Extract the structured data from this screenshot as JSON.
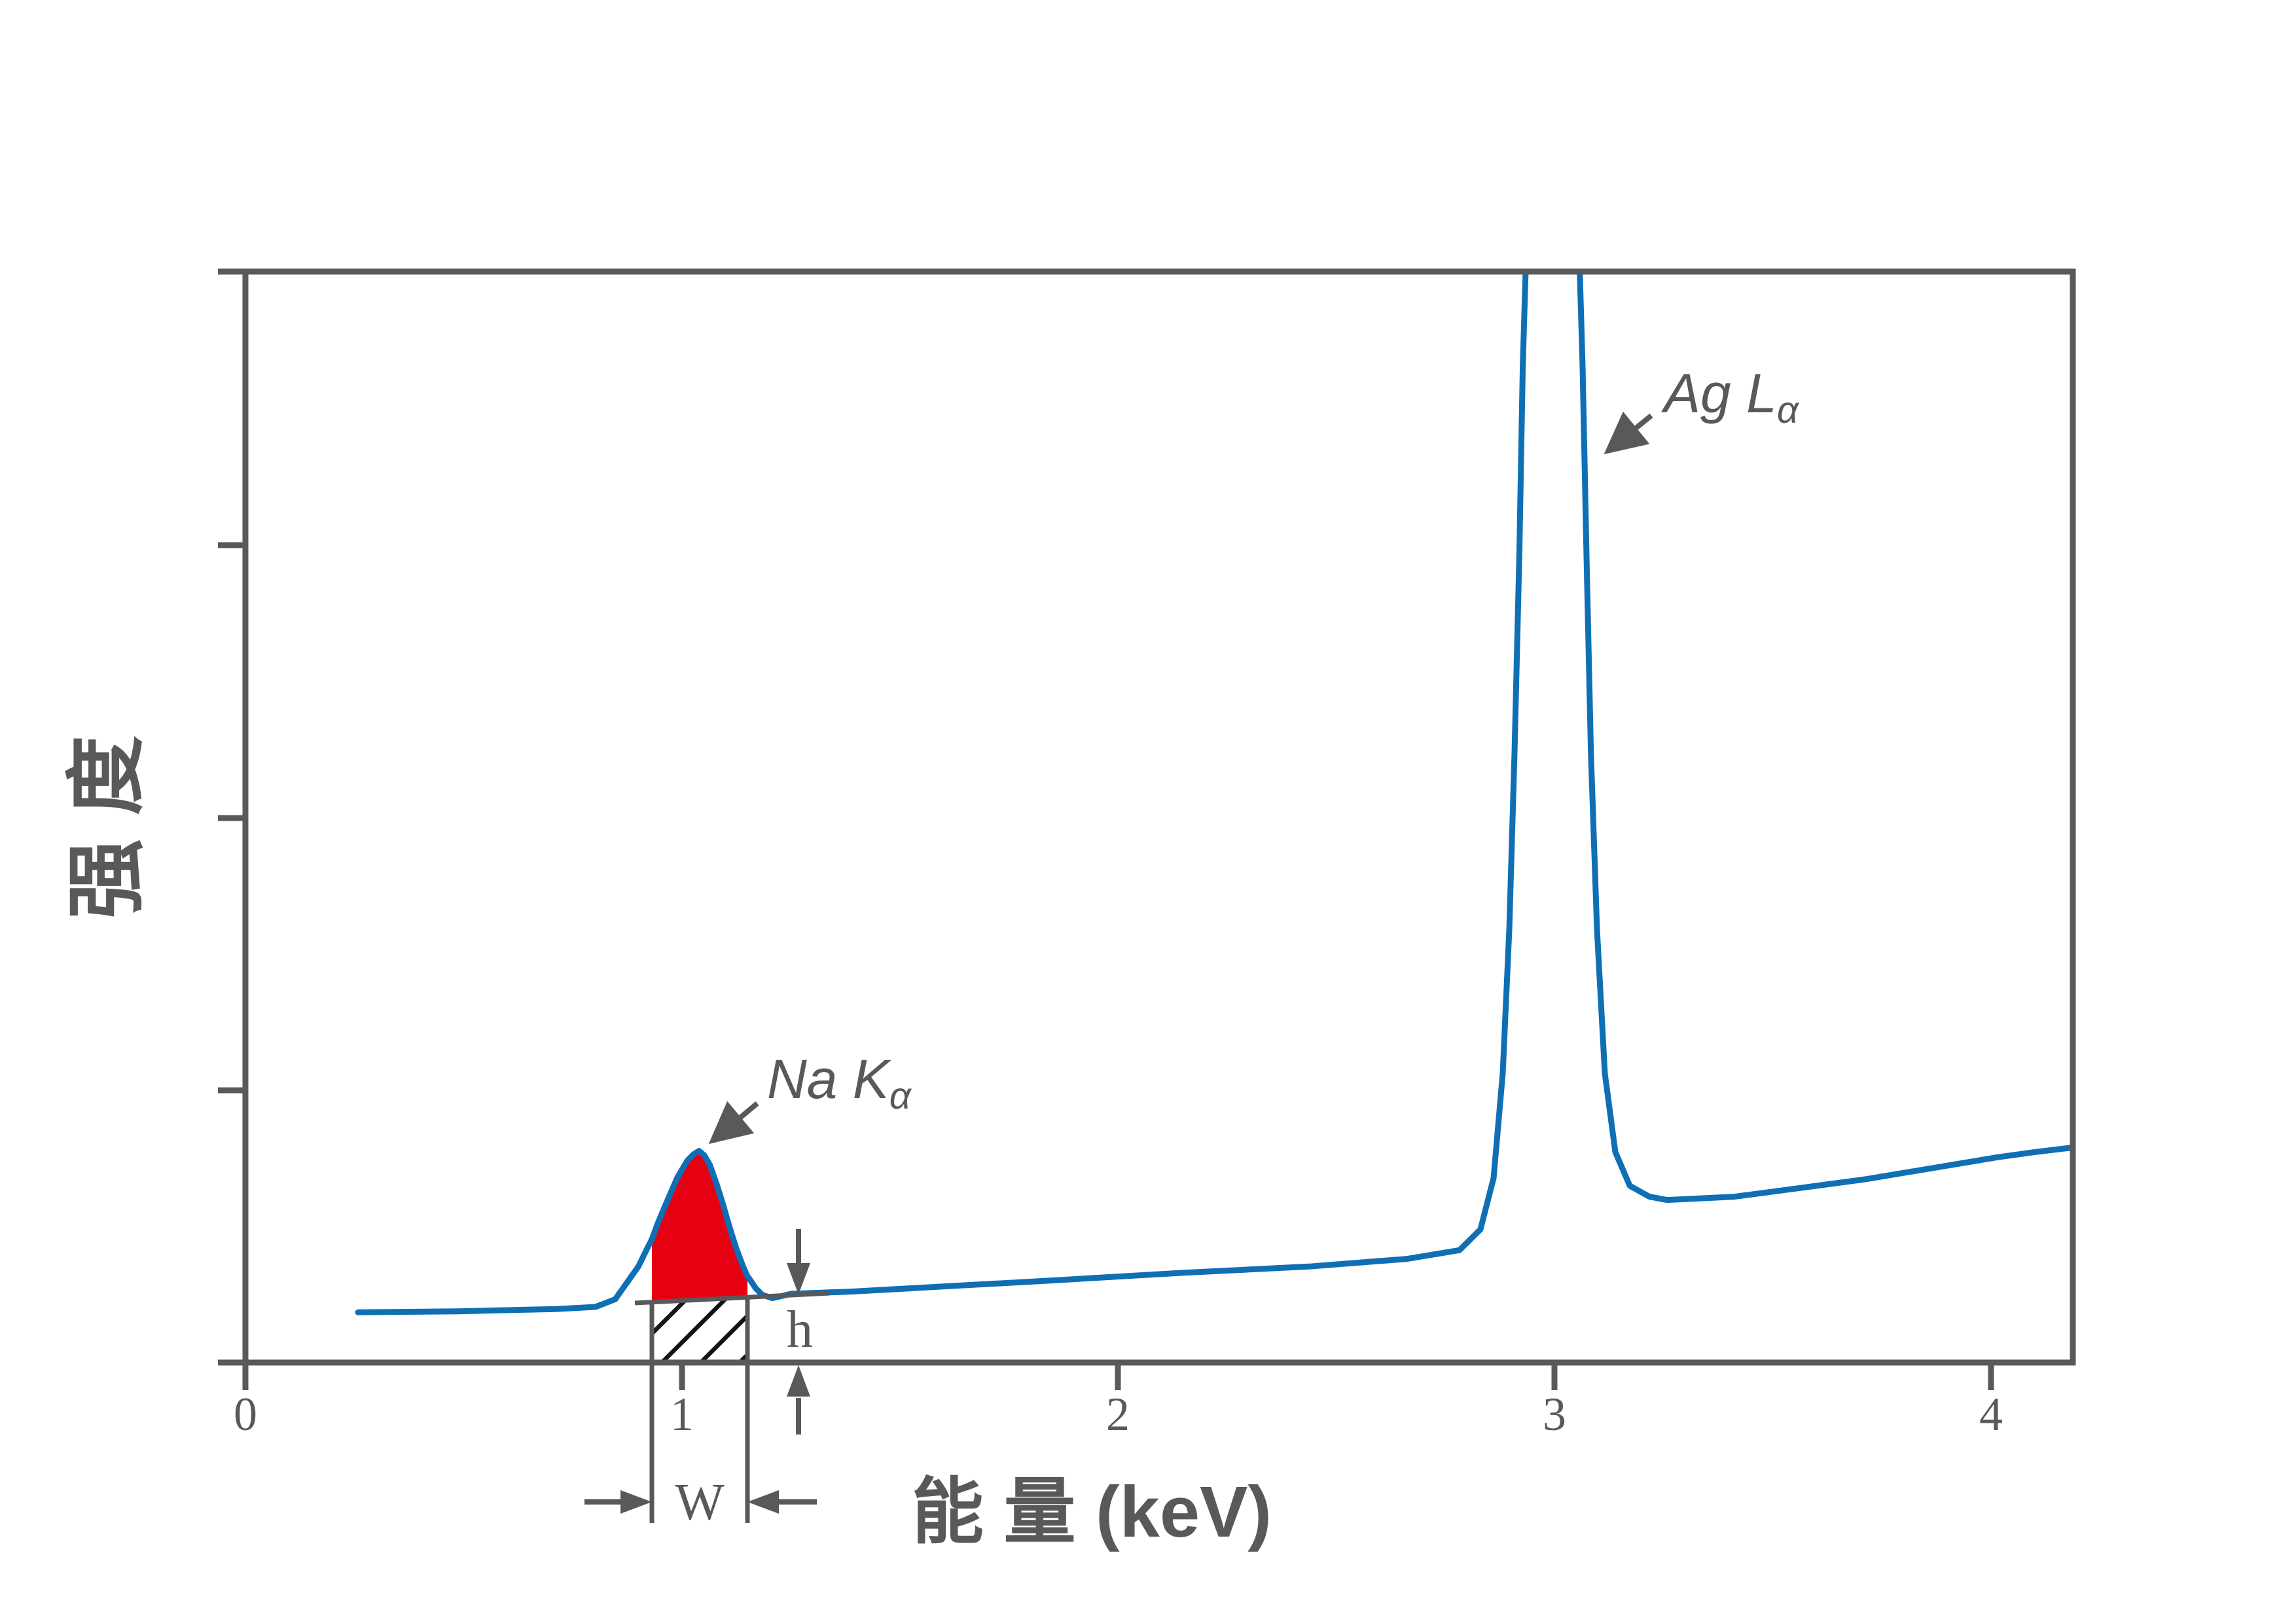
{
  "figure": {
    "background": "#ffffff",
    "description": "EDS X-ray spectrum with Na Ka peak area (red) above background, hatched background area of width W and height h, and clipped Ag La peak"
  },
  "colors": {
    "axis": "#58595B",
    "curve": "#0F6FB5",
    "peak_fill": "#E60012",
    "hatch": "#141414"
  },
  "chart_data": {
    "type": "line",
    "title": "",
    "xlabel": "能 量 (keV)",
    "ylabel": "强度",
    "xlim": [
      0,
      4.19
    ],
    "ylim": [
      0,
      1
    ],
    "x_ticks": [
      0,
      1,
      2,
      3,
      4
    ],
    "x_tick_labels": [
      "0",
      "1",
      "2",
      "3",
      "4"
    ],
    "y_ticks_rel": [
      0.25,
      0.5,
      0.75
    ],
    "y_tick_labels": [],
    "grid": false,
    "legend": "none",
    "series": [
      {
        "name": "spectrum",
        "color": "#0F6FB5",
        "points": [
          [
            0.258,
            0.046
          ],
          [
            0.487,
            0.047
          ],
          [
            0.712,
            0.049
          ],
          [
            0.802,
            0.051
          ],
          [
            0.847,
            0.058
          ],
          [
            0.877,
            0.075
          ],
          [
            0.9,
            0.088
          ],
          [
            0.922,
            0.106
          ],
          [
            0.931,
            0.113
          ],
          [
            0.944,
            0.127
          ],
          [
            0.967,
            0.149
          ],
          [
            0.99,
            0.17
          ],
          [
            1.012,
            0.185
          ],
          [
            1.027,
            0.191
          ],
          [
            1.039,
            0.194
          ],
          [
            1.051,
            0.19
          ],
          [
            1.064,
            0.181
          ],
          [
            1.079,
            0.164
          ],
          [
            1.094,
            0.145
          ],
          [
            1.109,
            0.124
          ],
          [
            1.124,
            0.105
          ],
          [
            1.139,
            0.089
          ],
          [
            1.15,
            0.079
          ],
          [
            1.154,
            0.077
          ],
          [
            1.169,
            0.068
          ],
          [
            1.184,
            0.062
          ],
          [
            1.207,
            0.059
          ],
          [
            1.25,
            0.063
          ],
          [
            1.387,
            0.065
          ],
          [
            1.612,
            0.07
          ],
          [
            1.837,
            0.075
          ],
          [
            2.136,
            0.082
          ],
          [
            2.436,
            0.088
          ],
          [
            2.661,
            0.095
          ],
          [
            2.781,
            0.103
          ],
          [
            2.829,
            0.122
          ],
          [
            2.859,
            0.169
          ],
          [
            2.88,
            0.265
          ],
          [
            2.895,
            0.397
          ],
          [
            2.907,
            0.559
          ],
          [
            2.918,
            0.739
          ],
          [
            2.926,
            0.913
          ],
          [
            2.934,
            1.021
          ],
          [
            2.946,
            1.069
          ],
          [
            3.045,
            1.069
          ],
          [
            3.055,
            1.021
          ],
          [
            3.063,
            0.913
          ],
          [
            3.072,
            0.739
          ],
          [
            3.082,
            0.559
          ],
          [
            3.096,
            0.397
          ],
          [
            3.114,
            0.265
          ],
          [
            3.138,
            0.193
          ],
          [
            3.171,
            0.162
          ],
          [
            3.216,
            0.152
          ],
          [
            3.256,
            0.149
          ],
          [
            3.411,
            0.152
          ],
          [
            3.561,
            0.16
          ],
          [
            3.711,
            0.168
          ],
          [
            3.861,
            0.178
          ],
          [
            4.011,
            0.188
          ],
          [
            4.1,
            0.193
          ],
          [
            4.184,
            0.197
          ]
        ]
      }
    ],
    "peaks": [
      {
        "label": "Na Kα",
        "energy_kev": 1.04,
        "height_rel": 0.194,
        "filled": true
      },
      {
        "label": "Ag Lα",
        "energy_kev": 2.99,
        "height_rel": 1.0,
        "clipped_at_top": true
      }
    ],
    "na_peak_region": {
      "x1_kev": 0.9309,
      "x2_kev": 1.1501,
      "baseline_y1_rel": 0.0552,
      "baseline_y2_rel": 0.06,
      "fill": "#E60012"
    }
  },
  "annotations": {
    "na_peak": {
      "text_main": "Na K",
      "text_sub": "α"
    },
    "ag_peak": {
      "text_main": "Ag L",
      "text_sub": "α"
    },
    "width_label": "W",
    "height_label": "h"
  }
}
